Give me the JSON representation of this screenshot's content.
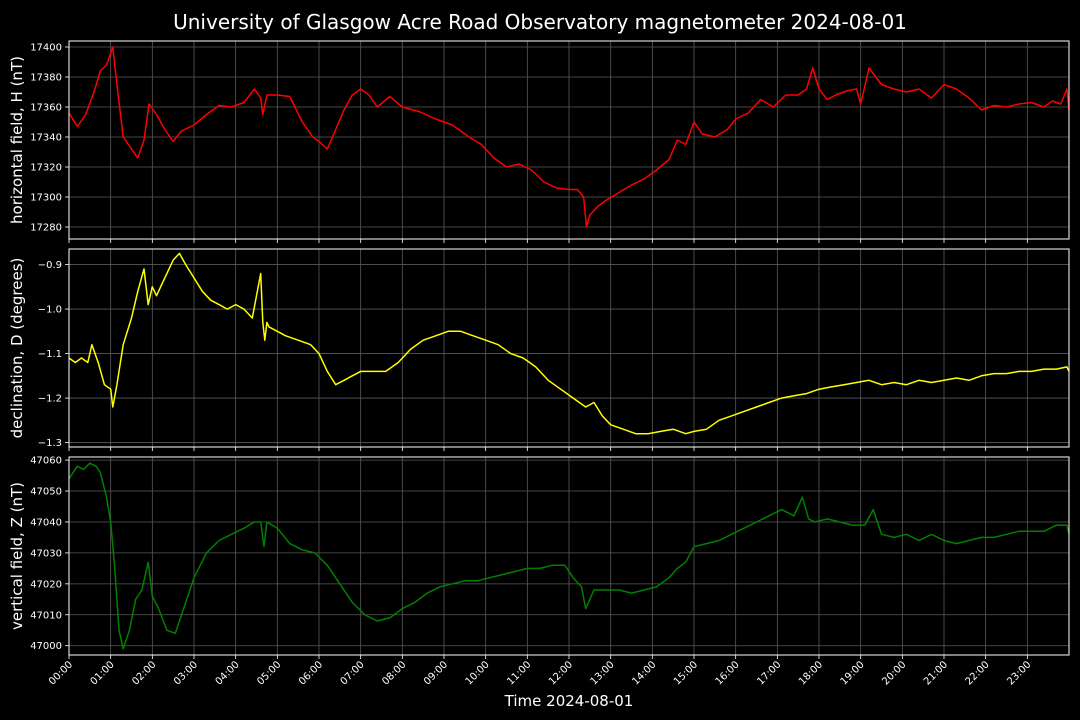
{
  "chart_data": {
    "type": "line",
    "title": "University of Glasgow Acre Road Observatory magnetometer 2024-08-01",
    "xlabel": "Time 2024-08-01",
    "x_range_hours": [
      0,
      24
    ],
    "x_ticks": [
      "00:00",
      "01:00",
      "02:00",
      "03:00",
      "04:00",
      "05:00",
      "06:00",
      "07:00",
      "08:00",
      "09:00",
      "10:00",
      "11:00",
      "12:00",
      "13:00",
      "14:00",
      "15:00",
      "16:00",
      "17:00",
      "18:00",
      "19:00",
      "20:00",
      "21:00",
      "22:00",
      "23:00"
    ],
    "grid": true,
    "background": "#000000",
    "panels": [
      {
        "ylabel": "horizontal field, H (nT)",
        "color": "#ff0000",
        "ylim": [
          17272,
          17404
        ],
        "yticks": [
          17280,
          17300,
          17320,
          17340,
          17360,
          17380,
          17400
        ],
        "ytick_labels": [
          "17280",
          "17300",
          "17320",
          "17340",
          "17360",
          "17380",
          "17400"
        ],
        "series": {
          "hours": [
            0,
            0.2,
            0.4,
            0.6,
            0.75,
            0.9,
            1.05,
            1.15,
            1.3,
            1.5,
            1.65,
            1.8,
            1.92,
            2.1,
            2.3,
            2.5,
            2.7,
            3.0,
            3.3,
            3.6,
            3.9,
            4.2,
            4.45,
            4.6,
            4.65,
            4.75,
            5.0,
            5.3,
            5.6,
            5.85,
            6.0,
            6.2,
            6.4,
            6.6,
            6.8,
            7.0,
            7.2,
            7.4,
            7.7,
            8.0,
            8.4,
            8.8,
            9.2,
            9.6,
            9.9,
            10.2,
            10.5,
            10.8,
            11.1,
            11.4,
            11.7,
            12.0,
            12.2,
            12.35,
            12.42,
            12.5,
            12.7,
            12.9,
            13.2,
            13.5,
            13.8,
            14.1,
            14.4,
            14.6,
            14.8,
            15.0,
            15.2,
            15.5,
            15.8,
            16.0,
            16.3,
            16.6,
            16.9,
            17.2,
            17.5,
            17.7,
            17.85,
            18.0,
            18.2,
            18.4,
            18.7,
            18.9,
            19.0,
            19.2,
            19.5,
            19.8,
            20.1,
            20.4,
            20.7,
            21.0,
            21.3,
            21.6,
            21.9,
            22.2,
            22.5,
            22.8,
            23.1,
            23.4,
            23.6,
            23.8,
            23.95,
            24.0
          ],
          "values": [
            17356,
            17347,
            17355,
            17370,
            17384,
            17388,
            17400,
            17375,
            17340,
            17332,
            17326,
            17338,
            17362,
            17355,
            17345,
            17337,
            17344,
            17348,
            17355,
            17361,
            17360,
            17363,
            17372,
            17366,
            17355,
            17368,
            17368,
            17367,
            17350,
            17340,
            17337,
            17332,
            17345,
            17358,
            17368,
            17372,
            17368,
            17360,
            17367,
            17360,
            17357,
            17352,
            17348,
            17340,
            17335,
            17326,
            17320,
            17322,
            17318,
            17310,
            17306,
            17305,
            17305,
            17300,
            17280,
            17288,
            17294,
            17298,
            17303,
            17308,
            17312,
            17318,
            17325,
            17338,
            17335,
            17350,
            17342,
            17340,
            17345,
            17352,
            17356,
            17365,
            17360,
            17368,
            17368,
            17372,
            17386,
            17372,
            17365,
            17368,
            17371,
            17372,
            17362,
            17386,
            17375,
            17372,
            17370,
            17372,
            17366,
            17375,
            17372,
            17366,
            17358,
            17361,
            17360,
            17362,
            17363,
            17360,
            17364,
            17362,
            17372,
            17358
          ]
        }
      },
      {
        "ylabel": "declination, D (degrees)",
        "color": "#ffff00",
        "ylim": [
          -1.31,
          -0.865
        ],
        "yticks": [
          -1.3,
          -1.2,
          -1.1,
          -1.0,
          -0.9
        ],
        "ytick_labels": [
          "−1.3",
          "−1.2",
          "−1.1",
          "−1.0",
          "−0.9"
        ],
        "series": {
          "hours": [
            0,
            0.15,
            0.3,
            0.45,
            0.55,
            0.7,
            0.85,
            1.0,
            1.05,
            1.15,
            1.3,
            1.5,
            1.65,
            1.8,
            1.9,
            2.0,
            2.1,
            2.3,
            2.5,
            2.65,
            2.8,
            3.0,
            3.2,
            3.4,
            3.6,
            3.8,
            4.0,
            4.2,
            4.4,
            4.6,
            4.65,
            4.7,
            4.75,
            4.8,
            5.0,
            5.2,
            5.5,
            5.8,
            6.0,
            6.2,
            6.4,
            6.6,
            6.8,
            7.0,
            7.3,
            7.6,
            7.9,
            8.2,
            8.5,
            8.8,
            9.1,
            9.4,
            9.7,
            10.0,
            10.3,
            10.6,
            10.9,
            11.2,
            11.5,
            11.8,
            12.1,
            12.4,
            12.6,
            12.8,
            13.0,
            13.3,
            13.6,
            13.9,
            14.2,
            14.5,
            14.8,
            15.0,
            15.3,
            15.6,
            15.9,
            16.2,
            16.5,
            16.8,
            17.1,
            17.4,
            17.7,
            18.0,
            18.3,
            18.6,
            18.9,
            19.2,
            19.5,
            19.8,
            20.1,
            20.4,
            20.7,
            21.0,
            21.3,
            21.6,
            21.9,
            22.2,
            22.5,
            22.8,
            23.1,
            23.4,
            23.7,
            23.95,
            24.0
          ],
          "values": [
            -1.11,
            -1.12,
            -1.11,
            -1.12,
            -1.08,
            -1.12,
            -1.17,
            -1.18,
            -1.22,
            -1.17,
            -1.08,
            -1.02,
            -0.96,
            -0.91,
            -0.99,
            -0.95,
            -0.97,
            -0.93,
            -0.89,
            -0.875,
            -0.9,
            -0.93,
            -0.96,
            -0.98,
            -0.99,
            -1.0,
            -0.99,
            -1.0,
            -1.02,
            -0.92,
            -1.03,
            -1.07,
            -1.03,
            -1.04,
            -1.05,
            -1.06,
            -1.07,
            -1.08,
            -1.1,
            -1.14,
            -1.17,
            -1.16,
            -1.15,
            -1.14,
            -1.14,
            -1.14,
            -1.12,
            -1.09,
            -1.07,
            -1.06,
            -1.05,
            -1.05,
            -1.06,
            -1.07,
            -1.08,
            -1.1,
            -1.11,
            -1.13,
            -1.16,
            -1.18,
            -1.2,
            -1.22,
            -1.21,
            -1.24,
            -1.26,
            -1.27,
            -1.28,
            -1.28,
            -1.275,
            -1.27,
            -1.28,
            -1.275,
            -1.27,
            -1.25,
            -1.24,
            -1.23,
            -1.22,
            -1.21,
            -1.2,
            -1.195,
            -1.19,
            -1.18,
            -1.175,
            -1.17,
            -1.165,
            -1.16,
            -1.17,
            -1.165,
            -1.17,
            -1.16,
            -1.165,
            -1.16,
            -1.155,
            -1.16,
            -1.15,
            -1.145,
            -1.145,
            -1.14,
            -1.14,
            -1.135,
            -1.135,
            -1.13,
            -1.14
          ]
        }
      },
      {
        "ylabel": "vertical field, Z (nT)",
        "color": "#008000",
        "ylim": [
          46997,
          47061
        ],
        "yticks": [
          47000,
          47010,
          47020,
          47030,
          47040,
          47050,
          47060
        ],
        "ytick_labels": [
          "47000",
          "47010",
          "47020",
          "47030",
          "47040",
          "47050",
          "47060"
        ],
        "series": {
          "hours": [
            0,
            0.2,
            0.35,
            0.5,
            0.65,
            0.75,
            0.9,
            1.0,
            1.1,
            1.2,
            1.3,
            1.45,
            1.6,
            1.75,
            1.9,
            2.0,
            2.15,
            2.35,
            2.55,
            2.75,
            3.0,
            3.3,
            3.6,
            3.9,
            4.2,
            4.45,
            4.6,
            4.68,
            4.75,
            5.0,
            5.3,
            5.6,
            5.9,
            6.2,
            6.5,
            6.8,
            7.1,
            7.4,
            7.7,
            8.0,
            8.3,
            8.6,
            8.9,
            9.2,
            9.5,
            9.8,
            10.1,
            10.4,
            10.7,
            11.0,
            11.3,
            11.6,
            11.9,
            12.1,
            12.3,
            12.4,
            12.6,
            12.9,
            13.2,
            13.5,
            13.8,
            14.1,
            14.4,
            14.6,
            14.8,
            15.0,
            15.3,
            15.6,
            15.9,
            16.2,
            16.5,
            16.8,
            17.1,
            17.4,
            17.6,
            17.75,
            17.9,
            18.2,
            18.5,
            18.8,
            19.1,
            19.3,
            19.5,
            19.8,
            20.1,
            20.4,
            20.7,
            21.0,
            21.3,
            21.6,
            21.9,
            22.2,
            22.5,
            22.8,
            23.1,
            23.4,
            23.7,
            23.95,
            24.0
          ],
          "values": [
            47054,
            47058,
            47057,
            47059,
            47058,
            47056,
            47048,
            47040,
            47025,
            47005,
            46999,
            47005,
            47015,
            47018,
            47027,
            47016,
            47012,
            47005,
            47004,
            47012,
            47022,
            47030,
            47034,
            47036,
            47038,
            47040,
            47040,
            47032,
            47040,
            47038,
            47033,
            47031,
            47030,
            47026,
            47020,
            47014,
            47010,
            47008,
            47009,
            47012,
            47014,
            47017,
            47019,
            47020,
            47021,
            47021,
            47022,
            47023,
            47024,
            47025,
            47025,
            47026,
            47026,
            47022,
            47019,
            47012,
            47018,
            47018,
            47018,
            47017,
            47018,
            47019,
            47022,
            47025,
            47027,
            47032,
            47033,
            47034,
            47036,
            47038,
            47040,
            47042,
            47044,
            47042,
            47048,
            47041,
            47040,
            47041,
            47040,
            47039,
            47039,
            47044,
            47036,
            47035,
            47036,
            47034,
            47036,
            47034,
            47033,
            47034,
            47035,
            47035,
            47036,
            47037,
            47037,
            47037,
            47039,
            47039,
            47036
          ]
        }
      }
    ]
  }
}
